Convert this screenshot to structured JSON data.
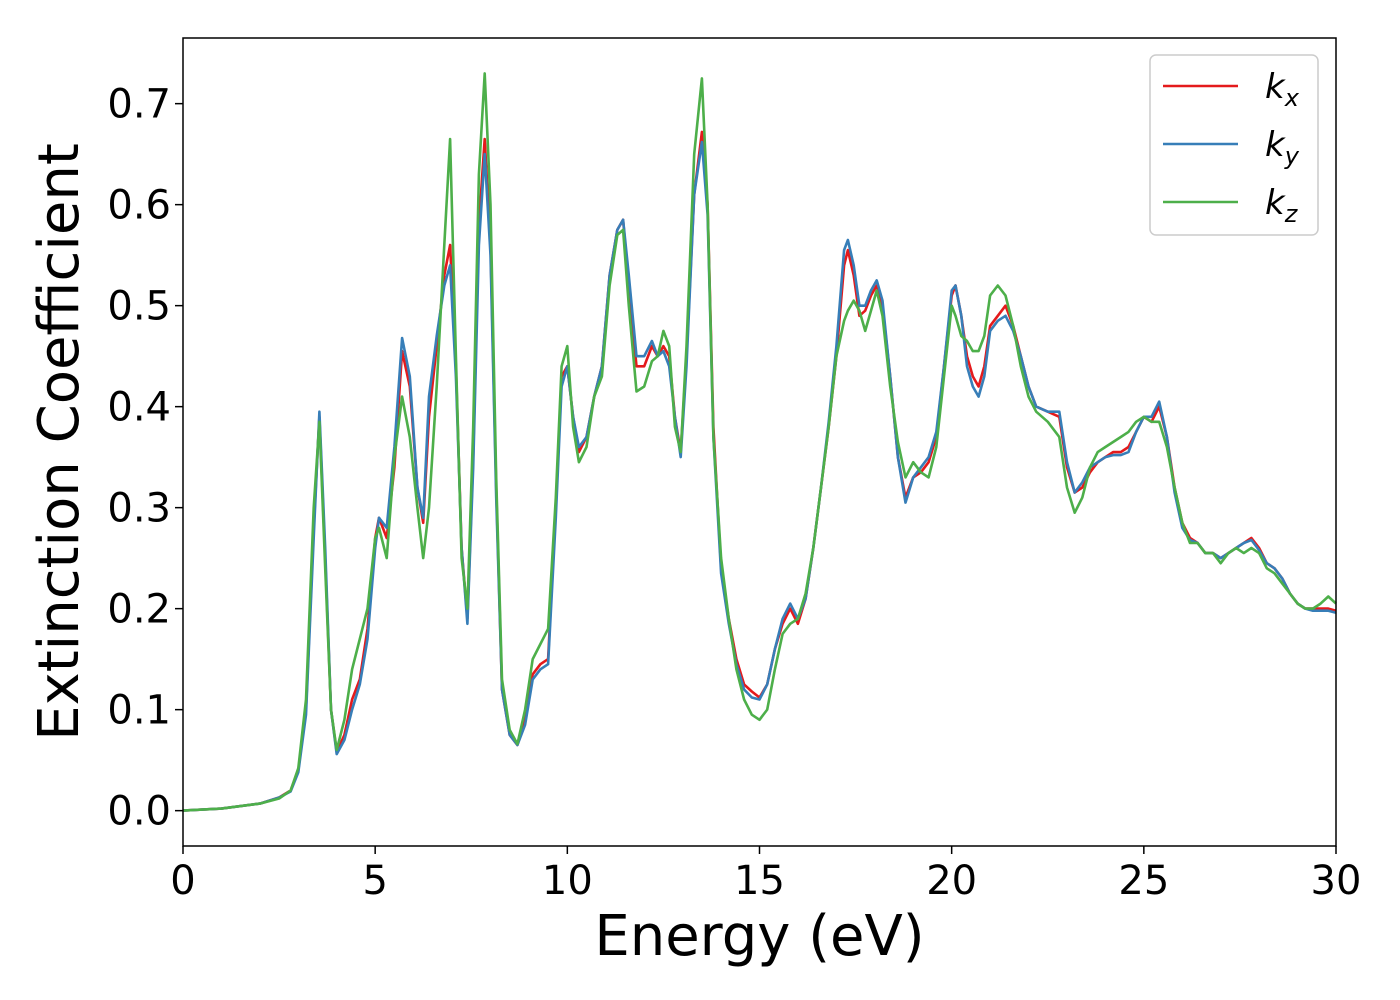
{
  "chart_data": {
    "type": "line",
    "title": "",
    "xlabel": "Energy (eV)",
    "ylabel": "Extinction Coefficient",
    "xlim": [
      0,
      30
    ],
    "ylim": [
      -0.035,
      0.765
    ],
    "xticks": [
      0,
      5,
      10,
      15,
      20,
      25,
      30
    ],
    "xtick_labels": [
      "0",
      "5",
      "10",
      "15",
      "20",
      "25",
      "30"
    ],
    "yticks": [
      0.0,
      0.1,
      0.2,
      0.3,
      0.4,
      0.5,
      0.6,
      0.7
    ],
    "ytick_labels": [
      "0.0",
      "0.1",
      "0.2",
      "0.3",
      "0.4",
      "0.5",
      "0.6",
      "0.7"
    ],
    "grid": false,
    "legend_position": "top-right",
    "series": [
      {
        "name": "k_x",
        "legend_main": "k",
        "legend_sub": "x",
        "color": "#e41a1c",
        "x": [
          0,
          1,
          2,
          2.5,
          2.8,
          3.0,
          3.2,
          3.4,
          3.55,
          3.7,
          3.85,
          4.0,
          4.2,
          4.4,
          4.6,
          4.8,
          5.0,
          5.1,
          5.3,
          5.5,
          5.7,
          5.9,
          6.1,
          6.25,
          6.4,
          6.6,
          6.8,
          6.95,
          7.1,
          7.25,
          7.4,
          7.55,
          7.7,
          7.85,
          8.0,
          8.15,
          8.3,
          8.5,
          8.7,
          8.9,
          9.1,
          9.3,
          9.5,
          9.7,
          9.85,
          10.0,
          10.15,
          10.3,
          10.5,
          10.7,
          10.9,
          11.1,
          11.3,
          11.45,
          11.6,
          11.8,
          12.0,
          12.2,
          12.35,
          12.5,
          12.65,
          12.8,
          12.95,
          13.1,
          13.3,
          13.5,
          13.65,
          13.8,
          14.0,
          14.2,
          14.4,
          14.6,
          14.8,
          15.0,
          15.2,
          15.4,
          15.6,
          15.8,
          16.0,
          16.2,
          16.4,
          16.6,
          16.8,
          17.0,
          17.2,
          17.3,
          17.45,
          17.6,
          17.75,
          17.9,
          18.05,
          18.2,
          18.4,
          18.6,
          18.8,
          19.0,
          19.2,
          19.4,
          19.6,
          19.8,
          20.0,
          20.1,
          20.25,
          20.4,
          20.55,
          20.7,
          20.85,
          21.0,
          21.2,
          21.4,
          21.6,
          21.8,
          22.0,
          22.2,
          22.5,
          22.8,
          23.0,
          23.2,
          23.4,
          23.6,
          23.8,
          24.0,
          24.2,
          24.4,
          24.6,
          24.8,
          25.0,
          25.2,
          25.4,
          25.6,
          25.8,
          26.0,
          26.2,
          26.4,
          26.6,
          26.8,
          27.0,
          27.2,
          27.4,
          27.6,
          27.8,
          28.0,
          28.2,
          28.4,
          28.6,
          28.8,
          29.0,
          29.2,
          29.4,
          29.6,
          29.8,
          30.0
        ],
        "y": [
          0.0,
          0.002,
          0.007,
          0.013,
          0.02,
          0.04,
          0.1,
          0.28,
          0.39,
          0.25,
          0.1,
          0.058,
          0.075,
          0.11,
          0.13,
          0.18,
          0.27,
          0.29,
          0.27,
          0.34,
          0.455,
          0.42,
          0.32,
          0.285,
          0.39,
          0.46,
          0.53,
          0.56,
          0.44,
          0.26,
          0.19,
          0.35,
          0.58,
          0.665,
          0.56,
          0.32,
          0.12,
          0.075,
          0.065,
          0.09,
          0.135,
          0.145,
          0.15,
          0.3,
          0.43,
          0.44,
          0.39,
          0.355,
          0.37,
          0.41,
          0.44,
          0.53,
          0.575,
          0.585,
          0.52,
          0.44,
          0.44,
          0.46,
          0.45,
          0.46,
          0.45,
          0.39,
          0.355,
          0.45,
          0.61,
          0.672,
          0.6,
          0.38,
          0.24,
          0.19,
          0.15,
          0.125,
          0.118,
          0.112,
          0.125,
          0.16,
          0.185,
          0.2,
          0.185,
          0.21,
          0.26,
          0.32,
          0.38,
          0.45,
          0.54,
          0.555,
          0.53,
          0.49,
          0.495,
          0.51,
          0.52,
          0.5,
          0.43,
          0.35,
          0.31,
          0.33,
          0.335,
          0.345,
          0.37,
          0.44,
          0.51,
          0.52,
          0.49,
          0.45,
          0.43,
          0.42,
          0.44,
          0.48,
          0.49,
          0.5,
          0.48,
          0.45,
          0.42,
          0.4,
          0.395,
          0.39,
          0.34,
          0.315,
          0.32,
          0.335,
          0.345,
          0.35,
          0.355,
          0.355,
          0.36,
          0.375,
          0.39,
          0.385,
          0.4,
          0.37,
          0.32,
          0.285,
          0.27,
          0.265,
          0.255,
          0.255,
          0.25,
          0.255,
          0.26,
          0.265,
          0.27,
          0.26,
          0.245,
          0.24,
          0.23,
          0.215,
          0.205,
          0.2,
          0.2,
          0.2,
          0.2,
          0.198
        ]
      },
      {
        "name": "k_y",
        "legend_main": "k",
        "legend_sub": "y",
        "color": "#377eb8",
        "x": [
          0,
          1,
          2,
          2.5,
          2.8,
          3.0,
          3.2,
          3.4,
          3.55,
          3.7,
          3.85,
          4.0,
          4.2,
          4.4,
          4.6,
          4.8,
          5.0,
          5.1,
          5.3,
          5.5,
          5.7,
          5.9,
          6.1,
          6.25,
          6.4,
          6.6,
          6.8,
          6.95,
          7.1,
          7.25,
          7.4,
          7.55,
          7.7,
          7.85,
          8.0,
          8.15,
          8.3,
          8.5,
          8.7,
          8.9,
          9.1,
          9.3,
          9.5,
          9.7,
          9.85,
          10.0,
          10.15,
          10.3,
          10.5,
          10.7,
          10.9,
          11.1,
          11.3,
          11.45,
          11.6,
          11.8,
          12.0,
          12.2,
          12.35,
          12.5,
          12.65,
          12.8,
          12.95,
          13.1,
          13.3,
          13.5,
          13.65,
          13.8,
          14.0,
          14.2,
          14.4,
          14.6,
          14.8,
          15.0,
          15.2,
          15.4,
          15.6,
          15.8,
          16.0,
          16.2,
          16.4,
          16.6,
          16.8,
          17.0,
          17.2,
          17.3,
          17.45,
          17.6,
          17.75,
          17.9,
          18.05,
          18.2,
          18.4,
          18.6,
          18.8,
          19.0,
          19.2,
          19.4,
          19.6,
          19.8,
          20.0,
          20.1,
          20.25,
          20.4,
          20.55,
          20.7,
          20.85,
          21.0,
          21.2,
          21.4,
          21.6,
          21.8,
          22.0,
          22.2,
          22.5,
          22.8,
          23.0,
          23.2,
          23.4,
          23.6,
          23.8,
          24.0,
          24.2,
          24.4,
          24.6,
          24.8,
          25.0,
          25.2,
          25.4,
          25.6,
          25.8,
          26.0,
          26.2,
          26.4,
          26.6,
          26.8,
          27.0,
          27.2,
          27.4,
          27.6,
          27.8,
          28.0,
          28.2,
          28.4,
          28.6,
          28.8,
          29.0,
          29.2,
          29.4,
          29.6,
          29.8,
          30.0
        ],
        "y": [
          0.0,
          0.002,
          0.007,
          0.013,
          0.019,
          0.038,
          0.095,
          0.27,
          0.395,
          0.26,
          0.1,
          0.056,
          0.07,
          0.1,
          0.125,
          0.17,
          0.26,
          0.29,
          0.28,
          0.36,
          0.468,
          0.43,
          0.32,
          0.29,
          0.41,
          0.47,
          0.52,
          0.54,
          0.43,
          0.26,
          0.185,
          0.34,
          0.56,
          0.65,
          0.55,
          0.31,
          0.12,
          0.075,
          0.065,
          0.085,
          0.13,
          0.14,
          0.145,
          0.29,
          0.42,
          0.44,
          0.39,
          0.36,
          0.37,
          0.41,
          0.44,
          0.53,
          0.575,
          0.585,
          0.53,
          0.45,
          0.45,
          0.465,
          0.45,
          0.455,
          0.44,
          0.39,
          0.35,
          0.44,
          0.61,
          0.662,
          0.59,
          0.37,
          0.235,
          0.185,
          0.145,
          0.12,
          0.112,
          0.11,
          0.125,
          0.16,
          0.19,
          0.205,
          0.19,
          0.21,
          0.26,
          0.32,
          0.385,
          0.46,
          0.555,
          0.565,
          0.54,
          0.5,
          0.5,
          0.515,
          0.525,
          0.505,
          0.43,
          0.35,
          0.305,
          0.33,
          0.34,
          0.35,
          0.375,
          0.44,
          0.515,
          0.52,
          0.49,
          0.44,
          0.42,
          0.41,
          0.43,
          0.475,
          0.485,
          0.49,
          0.475,
          0.45,
          0.42,
          0.4,
          0.395,
          0.395,
          0.345,
          0.315,
          0.325,
          0.34,
          0.345,
          0.35,
          0.352,
          0.352,
          0.355,
          0.375,
          0.39,
          0.39,
          0.405,
          0.37,
          0.315,
          0.28,
          0.268,
          0.265,
          0.255,
          0.255,
          0.25,
          0.255,
          0.26,
          0.265,
          0.268,
          0.258,
          0.245,
          0.24,
          0.23,
          0.215,
          0.205,
          0.2,
          0.198,
          0.198,
          0.198,
          0.196
        ]
      },
      {
        "name": "k_z",
        "legend_main": "k",
        "legend_sub": "z",
        "color": "#4daf4a",
        "x": [
          0,
          1,
          2,
          2.5,
          2.8,
          3.0,
          3.2,
          3.4,
          3.55,
          3.7,
          3.85,
          4.0,
          4.2,
          4.4,
          4.6,
          4.8,
          5.0,
          5.1,
          5.3,
          5.5,
          5.7,
          5.9,
          6.1,
          6.25,
          6.4,
          6.6,
          6.8,
          6.95,
          7.1,
          7.25,
          7.4,
          7.55,
          7.7,
          7.85,
          8.0,
          8.15,
          8.3,
          8.5,
          8.7,
          8.9,
          9.1,
          9.3,
          9.5,
          9.7,
          9.85,
          10.0,
          10.15,
          10.3,
          10.5,
          10.7,
          10.9,
          11.1,
          11.3,
          11.45,
          11.6,
          11.8,
          12.0,
          12.2,
          12.35,
          12.5,
          12.65,
          12.8,
          12.95,
          13.1,
          13.3,
          13.5,
          13.65,
          13.8,
          14.0,
          14.2,
          14.4,
          14.6,
          14.8,
          15.0,
          15.2,
          15.4,
          15.6,
          15.8,
          16.0,
          16.2,
          16.4,
          16.6,
          16.8,
          17.0,
          17.2,
          17.3,
          17.45,
          17.6,
          17.75,
          17.9,
          18.05,
          18.2,
          18.4,
          18.6,
          18.8,
          19.0,
          19.2,
          19.4,
          19.6,
          19.8,
          20.0,
          20.1,
          20.25,
          20.4,
          20.55,
          20.7,
          20.85,
          21.0,
          21.2,
          21.4,
          21.6,
          21.8,
          22.0,
          22.2,
          22.5,
          22.8,
          23.0,
          23.2,
          23.4,
          23.6,
          23.8,
          24.0,
          24.2,
          24.4,
          24.6,
          24.8,
          25.0,
          25.2,
          25.4,
          25.6,
          25.8,
          26.0,
          26.2,
          26.4,
          26.6,
          26.8,
          27.0,
          27.2,
          27.4,
          27.6,
          27.8,
          28.0,
          28.2,
          28.4,
          28.6,
          28.8,
          29.0,
          29.2,
          29.4,
          29.6,
          29.8,
          30.0
        ],
        "y": [
          0.0,
          0.002,
          0.007,
          0.012,
          0.02,
          0.042,
          0.11,
          0.3,
          0.385,
          0.24,
          0.1,
          0.06,
          0.09,
          0.14,
          0.17,
          0.2,
          0.27,
          0.28,
          0.25,
          0.35,
          0.41,
          0.37,
          0.3,
          0.25,
          0.3,
          0.42,
          0.56,
          0.665,
          0.45,
          0.25,
          0.2,
          0.38,
          0.63,
          0.73,
          0.6,
          0.33,
          0.13,
          0.08,
          0.066,
          0.1,
          0.15,
          0.165,
          0.18,
          0.31,
          0.44,
          0.46,
          0.38,
          0.345,
          0.36,
          0.41,
          0.43,
          0.52,
          0.57,
          0.575,
          0.5,
          0.415,
          0.42,
          0.445,
          0.45,
          0.475,
          0.46,
          0.38,
          0.355,
          0.46,
          0.65,
          0.725,
          0.6,
          0.37,
          0.25,
          0.19,
          0.14,
          0.11,
          0.095,
          0.09,
          0.1,
          0.14,
          0.175,
          0.185,
          0.19,
          0.215,
          0.26,
          0.32,
          0.38,
          0.45,
          0.485,
          0.495,
          0.505,
          0.495,
          0.475,
          0.495,
          0.515,
          0.49,
          0.42,
          0.365,
          0.33,
          0.345,
          0.335,
          0.33,
          0.36,
          0.43,
          0.5,
          0.49,
          0.47,
          0.465,
          0.455,
          0.455,
          0.47,
          0.51,
          0.52,
          0.51,
          0.48,
          0.44,
          0.41,
          0.395,
          0.385,
          0.37,
          0.32,
          0.295,
          0.31,
          0.34,
          0.355,
          0.36,
          0.365,
          0.37,
          0.375,
          0.385,
          0.39,
          0.385,
          0.385,
          0.36,
          0.32,
          0.285,
          0.265,
          0.265,
          0.255,
          0.255,
          0.245,
          0.255,
          0.26,
          0.255,
          0.26,
          0.255,
          0.24,
          0.235,
          0.225,
          0.215,
          0.205,
          0.2,
          0.2,
          0.205,
          0.212,
          0.205
        ]
      }
    ]
  }
}
